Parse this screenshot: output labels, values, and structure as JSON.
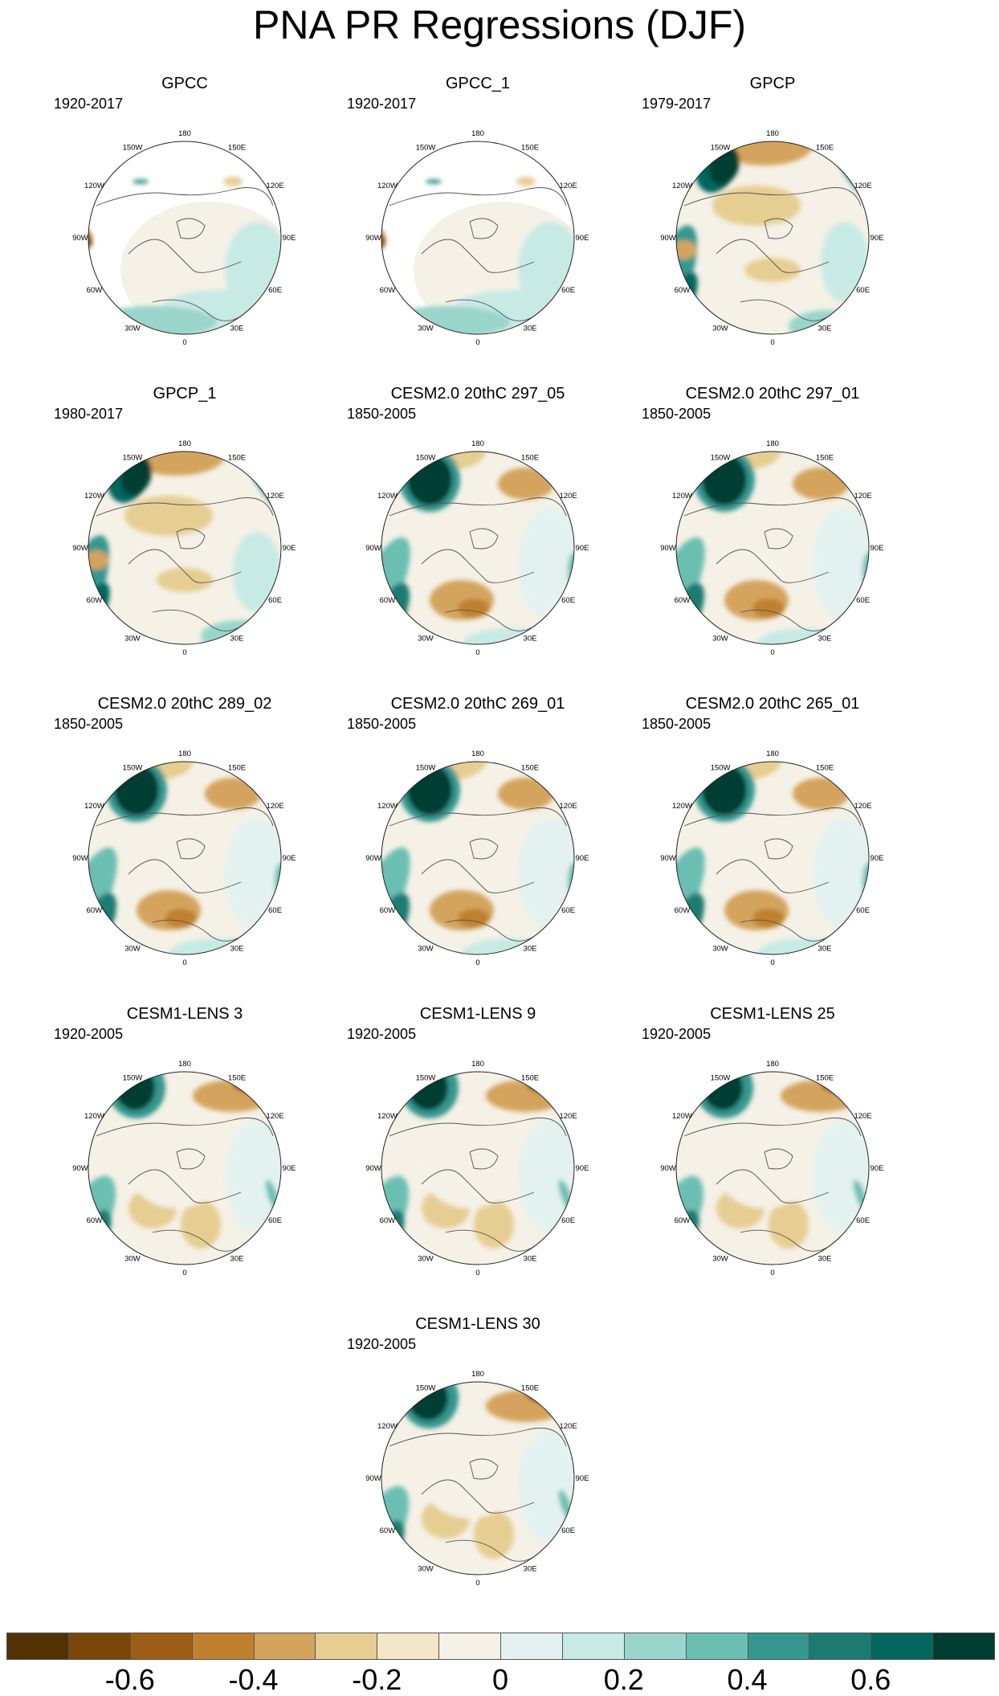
{
  "title": "PNA PR Regressions (DJF)",
  "lon_labels": [
    "180",
    "150E",
    "120E",
    "90E",
    "60E",
    "30E",
    "0",
    "30W",
    "60W",
    "90W",
    "120W",
    "150W"
  ],
  "panels": [
    {
      "title": "GPCC",
      "period": "1920-2017",
      "pattern": "gpcc"
    },
    {
      "title": "GPCC_1",
      "period": "1920-2017",
      "pattern": "gpcc"
    },
    {
      "title": "GPCP",
      "period": "1979-2017",
      "pattern": "gpcp"
    },
    {
      "title": "GPCP_1",
      "period": "1980-2017",
      "pattern": "gpcp"
    },
    {
      "title": "CESM2.0 20thC 297_05",
      "period": "1850-2005",
      "pattern": "cesm2"
    },
    {
      "title": "CESM2.0 20thC 297_01",
      "period": "1850-2005",
      "pattern": "cesm2"
    },
    {
      "title": "CESM2.0 20thC 289_02",
      "period": "1850-2005",
      "pattern": "cesm2"
    },
    {
      "title": "CESM2.0 20thC 269_01",
      "period": "1850-2005",
      "pattern": "cesm2"
    },
    {
      "title": "CESM2.0 20thC 265_01",
      "period": "1850-2005",
      "pattern": "cesm2"
    },
    {
      "title": "CESM1-LENS 3",
      "period": "1920-2005",
      "pattern": "lens"
    },
    {
      "title": "CESM1-LENS 9",
      "period": "1920-2005",
      "pattern": "lens"
    },
    {
      "title": "CESM1-LENS 25",
      "period": "1920-2005",
      "pattern": "lens"
    },
    {
      "title": "CESM1-LENS 30",
      "period": "1920-2005",
      "pattern": "lens"
    }
  ],
  "colorbar": {
    "labels": [
      "-0.6",
      "-0.4",
      "-0.2",
      "0",
      "0.2",
      "0.4",
      "0.6"
    ],
    "colors": [
      "#543005",
      "#7a4709",
      "#9c5e17",
      "#bf812d",
      "#d4a45f",
      "#e6cd92",
      "#f4e6c6",
      "#f5f1e6",
      "#e3f2f0",
      "#c7eae5",
      "#99d5cb",
      "#6abfb2",
      "#35978f",
      "#1c7c72",
      "#01665e",
      "#003c30"
    ]
  }
}
